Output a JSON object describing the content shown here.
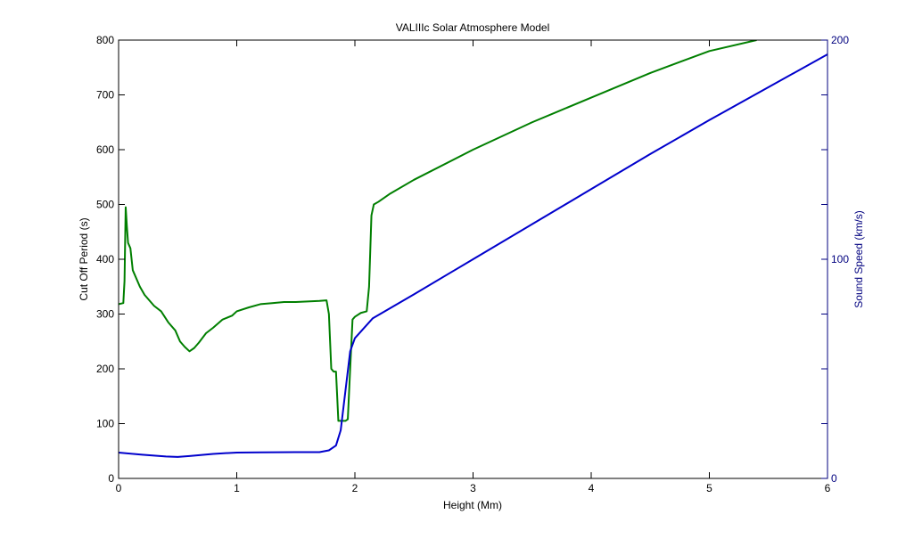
{
  "chart_data": {
    "type": "line",
    "title": "VALIIIc Solar Atmosphere Model",
    "xlabel": "Height (Mm)",
    "ylabel_left": "Cut Off Period (s)",
    "ylabel_right": "Sound Speed (km/s)",
    "xlim": [
      0,
      6
    ],
    "ylim_left": [
      0,
      800
    ],
    "ylim_right": [
      0,
      200
    ],
    "x_ticks": [
      0,
      1,
      2,
      3,
      4,
      5,
      6
    ],
    "y_ticks_left": [
      0,
      100,
      200,
      300,
      400,
      500,
      600,
      700,
      800
    ],
    "y_ticks_right": [
      0,
      100,
      200
    ],
    "grid": false,
    "legend": "none",
    "series": [
      {
        "axis": "left",
        "color": "#007f00",
        "x": [
          0.0,
          0.04,
          0.05,
          0.06,
          0.07,
          0.08,
          0.1,
          0.12,
          0.14,
          0.18,
          0.22,
          0.26,
          0.3,
          0.36,
          0.42,
          0.48,
          0.52,
          0.56,
          0.6,
          0.64,
          0.68,
          0.74,
          0.8,
          0.88,
          0.96,
          1.0,
          1.1,
          1.2,
          1.3,
          1.4,
          1.5,
          1.6,
          1.7,
          1.76,
          1.78,
          1.8,
          1.82,
          1.84,
          1.86,
          1.88,
          1.9,
          1.92,
          1.94,
          1.96,
          1.98,
          2.0,
          2.05,
          2.1,
          2.12,
          2.14,
          2.16,
          2.2,
          2.3,
          2.5,
          3.0,
          3.5,
          4.0,
          4.5,
          5.0,
          5.4
        ],
        "y": [
          318,
          320,
          360,
          495,
          460,
          430,
          420,
          380,
          370,
          350,
          335,
          325,
          315,
          305,
          285,
          270,
          250,
          240,
          232,
          238,
          248,
          265,
          275,
          290,
          297,
          305,
          312,
          318,
          320,
          322,
          322,
          323,
          324,
          325,
          300,
          200,
          195,
          195,
          105,
          105,
          105,
          105,
          108,
          200,
          290,
          295,
          302,
          305,
          350,
          480,
          500,
          505,
          520,
          545,
          600,
          650,
          695,
          740,
          780,
          800
        ]
      },
      {
        "axis": "right",
        "color": "#0000cc",
        "x": [
          0.0,
          0.2,
          0.4,
          0.5,
          0.6,
          0.8,
          1.0,
          1.2,
          1.5,
          1.7,
          1.78,
          1.84,
          1.88,
          1.92,
          1.96,
          2.0,
          2.05,
          2.1,
          2.15,
          2.5,
          3.0,
          3.5,
          4.0,
          4.5,
          5.0,
          5.5,
          6.0
        ],
        "y": [
          11.8,
          10.8,
          10.0,
          9.8,
          10.2,
          11.2,
          11.8,
          11.9,
          12.0,
          12.0,
          12.8,
          15.0,
          22,
          40,
          58,
          64,
          67,
          70,
          73,
          84,
          100,
          116,
          132,
          148,
          163.5,
          178.5,
          193.5
        ]
      }
    ]
  }
}
